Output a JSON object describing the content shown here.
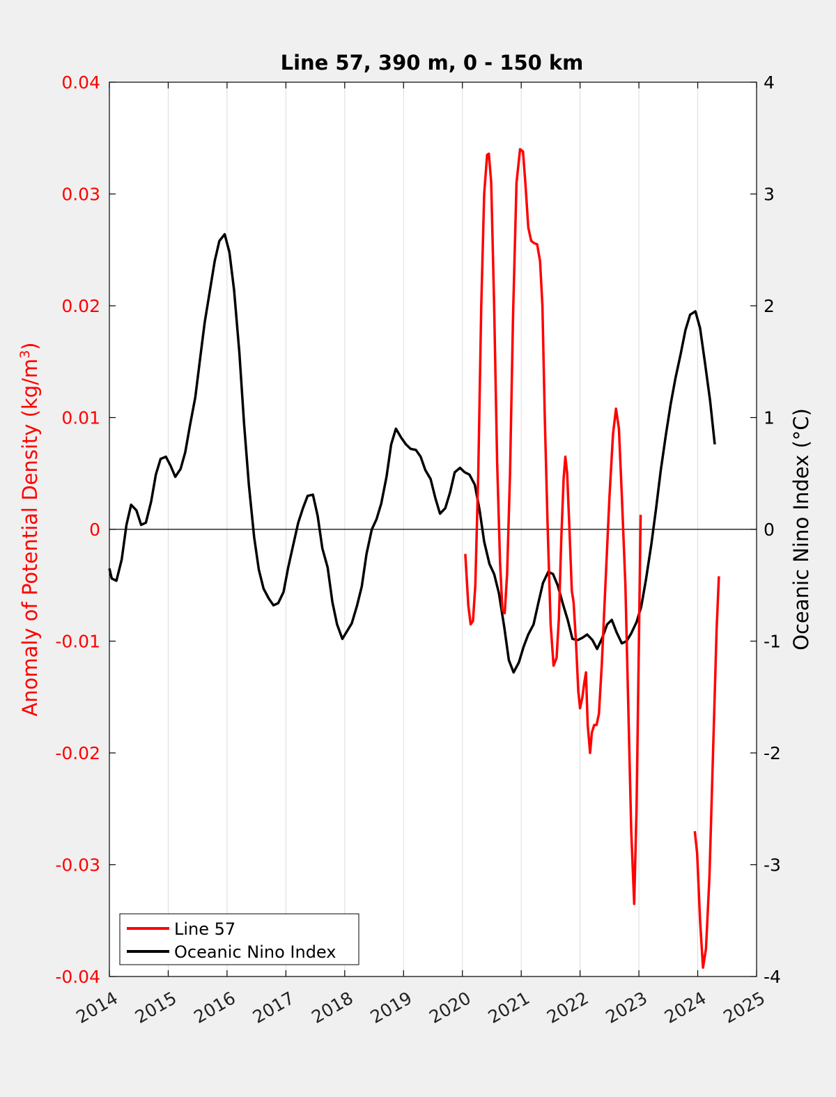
{
  "colors": {
    "line57": "#ff0000",
    "oni": "#000000",
    "left_axis": "#ff0000",
    "right_axis": "#000000"
  },
  "chart_data": {
    "type": "line",
    "title": "Line 57, 390 m, 0 - 150 km",
    "ylabel_left": "Anomaly of Potential Density (kg/m3)",
    "ylabel_left_parts": [
      "Anomaly of Potential Density (kg/m",
      "3",
      ")"
    ],
    "ylabel_right": "Oceanic Nino Index (°C)",
    "xlim": [
      2014,
      2025
    ],
    "ylim_left": [
      -0.04,
      0.04
    ],
    "ylim_right": [
      -4,
      4
    ],
    "x_ticks": [
      "2014",
      "2015",
      "2016",
      "2017",
      "2018",
      "2019",
      "2020",
      "2021",
      "2022",
      "2023",
      "2024",
      "2025"
    ],
    "y_left_ticks": [
      "-0.04",
      "-0.03",
      "-0.02",
      "-0.01",
      "0",
      "0.01",
      "0.02",
      "0.03",
      "0.04"
    ],
    "y_right_ticks": [
      "-4",
      "-3",
      "-2",
      "-1",
      "0",
      "1",
      "2",
      "3",
      "4"
    ],
    "grid": "vertical",
    "zero_line": true,
    "legend": {
      "position": "bottom-left",
      "entries": [
        "Line 57",
        "Oceanic Nino Index"
      ]
    },
    "series": [
      {
        "name": "Line 57",
        "axis": "left",
        "segments": [
          [
            [
              2020.05,
              -0.0022
            ],
            [
              2020.1,
              -0.0068
            ],
            [
              2020.14,
              -0.0085
            ],
            [
              2020.18,
              -0.0082
            ],
            [
              2020.22,
              -0.005
            ],
            [
              2020.27,
              0.005
            ],
            [
              2020.32,
              0.02
            ],
            [
              2020.37,
              0.03
            ],
            [
              2020.42,
              0.0335
            ],
            [
              2020.45,
              0.0336
            ],
            [
              2020.49,
              0.031
            ],
            [
              2020.54,
              0.02
            ],
            [
              2020.59,
              0.006
            ],
            [
              2020.64,
              -0.003
            ],
            [
              2020.68,
              -0.0072
            ],
            [
              2020.72,
              -0.0075
            ],
            [
              2020.76,
              -0.004
            ],
            [
              2020.81,
              0.005
            ],
            [
              2020.86,
              0.019
            ],
            [
              2020.92,
              0.031
            ],
            [
              2020.98,
              0.034
            ],
            [
              2021.03,
              0.0338
            ],
            [
              2021.07,
              0.031
            ],
            [
              2021.12,
              0.027
            ],
            [
              2021.17,
              0.0258
            ],
            [
              2021.22,
              0.0256
            ],
            [
              2021.27,
              0.0255
            ],
            [
              2021.32,
              0.024
            ],
            [
              2021.36,
              0.02
            ],
            [
              2021.4,
              0.01
            ],
            [
              2021.45,
              0.0
            ],
            [
              2021.5,
              -0.0085
            ],
            [
              2021.55,
              -0.0122
            ],
            [
              2021.6,
              -0.0115
            ],
            [
              2021.64,
              -0.008
            ],
            [
              2021.68,
              -0.001
            ],
            [
              2021.72,
              0.0045
            ],
            [
              2021.75,
              0.0065
            ],
            [
              2021.78,
              0.005
            ],
            [
              2021.82,
              0.0
            ],
            [
              2021.86,
              -0.0055
            ],
            [
              2021.89,
              -0.0065
            ],
            [
              2021.93,
              -0.01
            ],
            [
              2021.97,
              -0.0145
            ],
            [
              2022.0,
              -0.016
            ],
            [
              2022.04,
              -0.015
            ],
            [
              2022.07,
              -0.0138
            ],
            [
              2022.1,
              -0.0128
            ],
            [
              2022.13,
              -0.0175
            ],
            [
              2022.17,
              -0.02
            ],
            [
              2022.2,
              -0.0182
            ],
            [
              2022.24,
              -0.0175
            ],
            [
              2022.28,
              -0.0175
            ],
            [
              2022.32,
              -0.0165
            ],
            [
              2022.37,
              -0.012
            ],
            [
              2022.43,
              -0.005
            ],
            [
              2022.5,
              0.003
            ],
            [
              2022.56,
              0.0085
            ],
            [
              2022.61,
              0.0108
            ],
            [
              2022.66,
              0.009
            ],
            [
              2022.71,
              0.003
            ],
            [
              2022.77,
              -0.005
            ],
            [
              2022.82,
              -0.016
            ],
            [
              2022.87,
              -0.027
            ],
            [
              2022.92,
              -0.0335
            ],
            [
              2022.96,
              -0.025
            ],
            [
              2023.0,
              -0.01
            ],
            [
              2023.03,
              0.0013
            ]
          ],
          [
            [
              2023.95,
              -0.027
            ],
            [
              2023.99,
              -0.029
            ],
            [
              2024.04,
              -0.035
            ],
            [
              2024.09,
              -0.0392
            ],
            [
              2024.14,
              -0.0375
            ],
            [
              2024.2,
              -0.031
            ],
            [
              2024.26,
              -0.02
            ],
            [
              2024.32,
              -0.009
            ],
            [
              2024.36,
              -0.0042
            ]
          ]
        ]
      },
      {
        "name": "Oceanic Nino Index",
        "axis": "right",
        "points": [
          [
            2014.0,
            -0.35
          ],
          [
            2014.04,
            -0.44
          ],
          [
            2014.12,
            -0.46
          ],
          [
            2014.21,
            -0.27
          ],
          [
            2014.29,
            0.04
          ],
          [
            2014.37,
            0.22
          ],
          [
            2014.46,
            0.17
          ],
          [
            2014.54,
            0.04
          ],
          [
            2014.62,
            0.06
          ],
          [
            2014.71,
            0.25
          ],
          [
            2014.79,
            0.49
          ],
          [
            2014.87,
            0.63
          ],
          [
            2014.96,
            0.65
          ],
          [
            2015.04,
            0.57
          ],
          [
            2015.12,
            0.47
          ],
          [
            2015.21,
            0.54
          ],
          [
            2015.29,
            0.69
          ],
          [
            2015.37,
            0.93
          ],
          [
            2015.46,
            1.18
          ],
          [
            2015.54,
            1.52
          ],
          [
            2015.62,
            1.85
          ],
          [
            2015.71,
            2.14
          ],
          [
            2015.79,
            2.4
          ],
          [
            2015.87,
            2.58
          ],
          [
            2015.96,
            2.64
          ],
          [
            2016.04,
            2.48
          ],
          [
            2016.12,
            2.14
          ],
          [
            2016.21,
            1.58
          ],
          [
            2016.29,
            0.94
          ],
          [
            2016.37,
            0.4
          ],
          [
            2016.46,
            -0.07
          ],
          [
            2016.54,
            -0.36
          ],
          [
            2016.62,
            -0.53
          ],
          [
            2016.71,
            -0.62
          ],
          [
            2016.79,
            -0.68
          ],
          [
            2016.87,
            -0.66
          ],
          [
            2016.96,
            -0.56
          ],
          [
            2017.04,
            -0.34
          ],
          [
            2017.12,
            -0.15
          ],
          [
            2017.21,
            0.06
          ],
          [
            2017.29,
            0.19
          ],
          [
            2017.37,
            0.3
          ],
          [
            2017.46,
            0.31
          ],
          [
            2017.54,
            0.12
          ],
          [
            2017.62,
            -0.17
          ],
          [
            2017.71,
            -0.34
          ],
          [
            2017.79,
            -0.65
          ],
          [
            2017.87,
            -0.85
          ],
          [
            2017.96,
            -0.98
          ],
          [
            2018.04,
            -0.91
          ],
          [
            2018.12,
            -0.84
          ],
          [
            2018.21,
            -0.68
          ],
          [
            2018.29,
            -0.51
          ],
          [
            2018.37,
            -0.22
          ],
          [
            2018.46,
            0.0
          ],
          [
            2018.54,
            0.09
          ],
          [
            2018.62,
            0.23
          ],
          [
            2018.71,
            0.47
          ],
          [
            2018.79,
            0.76
          ],
          [
            2018.87,
            0.9
          ],
          [
            2018.96,
            0.82
          ],
          [
            2019.04,
            0.76
          ],
          [
            2019.12,
            0.72
          ],
          [
            2019.21,
            0.71
          ],
          [
            2019.29,
            0.65
          ],
          [
            2019.37,
            0.53
          ],
          [
            2019.46,
            0.45
          ],
          [
            2019.54,
            0.28
          ],
          [
            2019.62,
            0.14
          ],
          [
            2019.71,
            0.19
          ],
          [
            2019.79,
            0.33
          ],
          [
            2019.87,
            0.51
          ],
          [
            2019.96,
            0.55
          ],
          [
            2020.04,
            0.51
          ],
          [
            2020.12,
            0.49
          ],
          [
            2020.21,
            0.4
          ],
          [
            2020.29,
            0.18
          ],
          [
            2020.37,
            -0.11
          ],
          [
            2020.46,
            -0.31
          ],
          [
            2020.54,
            -0.4
          ],
          [
            2020.62,
            -0.57
          ],
          [
            2020.71,
            -0.87
          ],
          [
            2020.79,
            -1.17
          ],
          [
            2020.87,
            -1.28
          ],
          [
            2020.96,
            -1.19
          ],
          [
            2021.04,
            -1.05
          ],
          [
            2021.12,
            -0.94
          ],
          [
            2021.21,
            -0.85
          ],
          [
            2021.29,
            -0.66
          ],
          [
            2021.37,
            -0.48
          ],
          [
            2021.46,
            -0.38
          ],
          [
            2021.54,
            -0.4
          ],
          [
            2021.62,
            -0.5
          ],
          [
            2021.71,
            -0.67
          ],
          [
            2021.79,
            -0.81
          ],
          [
            2021.87,
            -0.98
          ],
          [
            2021.96,
            -0.99
          ],
          [
            2022.04,
            -0.97
          ],
          [
            2022.12,
            -0.94
          ],
          [
            2022.21,
            -0.99
          ],
          [
            2022.29,
            -1.07
          ],
          [
            2022.37,
            -0.98
          ],
          [
            2022.46,
            -0.85
          ],
          [
            2022.54,
            -0.81
          ],
          [
            2022.62,
            -0.92
          ],
          [
            2022.71,
            -1.02
          ],
          [
            2022.79,
            -1.0
          ],
          [
            2022.87,
            -0.93
          ],
          [
            2022.96,
            -0.83
          ],
          [
            2023.04,
            -0.69
          ],
          [
            2023.12,
            -0.45
          ],
          [
            2023.21,
            -0.14
          ],
          [
            2023.29,
            0.18
          ],
          [
            2023.37,
            0.52
          ],
          [
            2023.46,
            0.85
          ],
          [
            2023.54,
            1.12
          ],
          [
            2023.62,
            1.35
          ],
          [
            2023.71,
            1.57
          ],
          [
            2023.79,
            1.78
          ],
          [
            2023.87,
            1.92
          ],
          [
            2023.96,
            1.95
          ],
          [
            2024.04,
            1.8
          ],
          [
            2024.12,
            1.5
          ],
          [
            2024.21,
            1.15
          ],
          [
            2024.29,
            0.76
          ]
        ]
      }
    ]
  }
}
